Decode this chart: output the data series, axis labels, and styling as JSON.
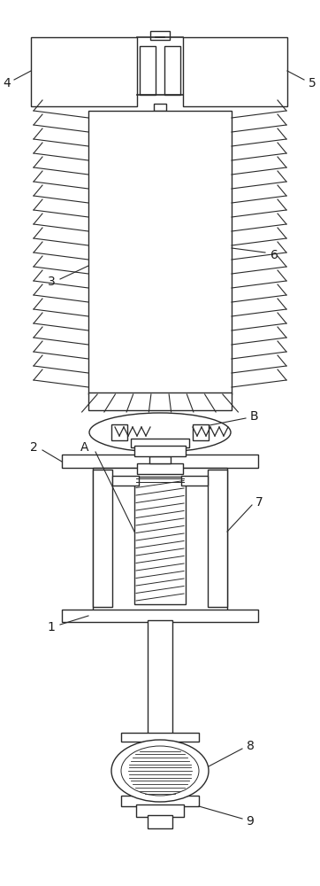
{
  "bg_color": "#ffffff",
  "line_color": "#2a2a2a",
  "line_width": 1.0,
  "fig_width": 3.62,
  "fig_height": 10.0,
  "label_fontsize": 10,
  "label_color": "#1a1a1a"
}
